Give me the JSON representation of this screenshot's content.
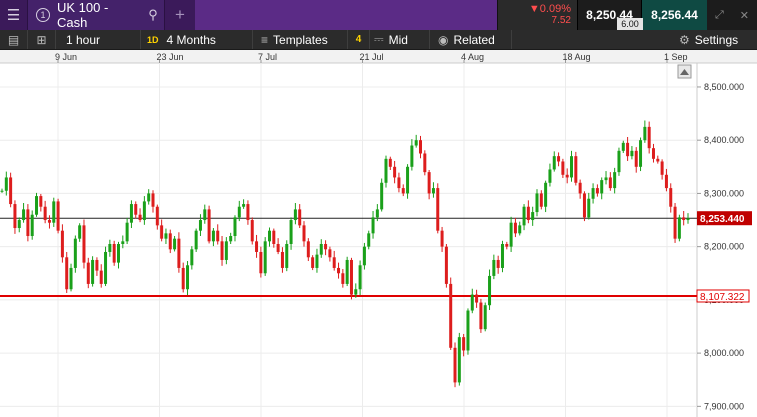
{
  "header": {
    "menu_icon": "hamburger-menu-icon",
    "tab_number": "1",
    "instrument": "UK 100 - Cash",
    "search_icon": "search-icon",
    "add_icon": "plus-icon",
    "change_pct": "▼0.09%",
    "change_abs": "7.52",
    "sell_price": "8,250.44",
    "buy_price": "8,256.44",
    "spread": "6.00",
    "expand_icon": "expand-icon",
    "close_icon": "close-icon",
    "colors": {
      "header_bg": "#3b1a5a",
      "negative": "#ff4d4d",
      "buy_bg": "#0f4a43"
    }
  },
  "toolbar": {
    "list_icon": "list-icon",
    "layout_icon": "grid-layout-icon",
    "interval": "1 hour",
    "range_badge": "1D",
    "range": "4 Months",
    "templates_icon": "sliders-icon",
    "templates": "Templates",
    "indicator_count": "4",
    "price_type_icon": "candles-icon",
    "price_type": "Mid",
    "related_icon": "eye-icon",
    "related": "Related",
    "settings_icon": "gear-icon",
    "settings": "Settings"
  },
  "chart_data": {
    "type": "candlestick",
    "x_labels": [
      "9 Jun",
      "23 Jun",
      "7 Jul",
      "21 Jul",
      "4 Aug",
      "18 Aug",
      "1 Sep"
    ],
    "y_ticks": [
      "8,500.000",
      "8,400.000",
      "8,300.000",
      "8,200.000",
      "8,100.000",
      "8,000.000",
      "7,900.000"
    ],
    "y_tick_values": [
      8500,
      8400,
      8300,
      8200,
      8100,
      8000,
      7900
    ],
    "ylim": [
      7880,
      8545
    ],
    "current_price": 8253.44,
    "current_price_label": "8,253.440",
    "hline_price": 8107.322,
    "hline_label": "8,107.322",
    "grid": true,
    "colors": {
      "up": "#1aa01a",
      "down": "#dd1d1d",
      "hline": "#e00000",
      "current_tag": "#c00000"
    },
    "series": [
      {
        "close": [
          8305,
          8330,
          8280,
          8235,
          8250,
          8270,
          8220,
          8260,
          8295,
          8275,
          8250,
          8245,
          8285,
          8230,
          8180,
          8120,
          8160,
          8215,
          8240,
          8170,
          8130,
          8175,
          8155,
          8130,
          8190,
          8205,
          8170,
          8205,
          8210,
          8245,
          8280,
          8260,
          8250,
          8285,
          8300,
          8275,
          8240,
          8215,
          8225,
          8195,
          8215,
          8160,
          8120,
          8165,
          8195,
          8230,
          8250,
          8270,
          8210,
          8230,
          8210,
          8175,
          8210,
          8220,
          8255,
          8275,
          8280,
          8250,
          8210,
          8190,
          8150,
          8210,
          8230,
          8205,
          8190,
          8160,
          8205,
          8250,
          8270,
          8240,
          8210,
          8180,
          8160,
          8185,
          8205,
          8195,
          8180,
          8160,
          8150,
          8130,
          8175,
          8110,
          8120,
          8165,
          8200,
          8225,
          8255,
          8270,
          8320,
          8365,
          8350,
          8330,
          8310,
          8300,
          8350,
          8390,
          8400,
          8375,
          8340,
          8300,
          8310,
          8230,
          8200,
          8130,
          8010,
          7945,
          8030,
          8005,
          8080,
          8110,
          8095,
          8045,
          8090,
          8145,
          8175,
          8160,
          8205,
          8200,
          8245,
          8225,
          8240,
          8275,
          8250,
          8265,
          8300,
          8275,
          8320,
          8345,
          8370,
          8360,
          8335,
          8330,
          8370,
          8320,
          8300,
          8255,
          8290,
          8310,
          8300,
          8325,
          8330,
          8310,
          8340,
          8380,
          8395,
          8370,
          8380,
          8350,
          8400,
          8425,
          8385,
          8365,
          8360,
          8335,
          8310,
          8275,
          8215,
          8255,
          8250,
          8253
        ]
      }
    ]
  }
}
